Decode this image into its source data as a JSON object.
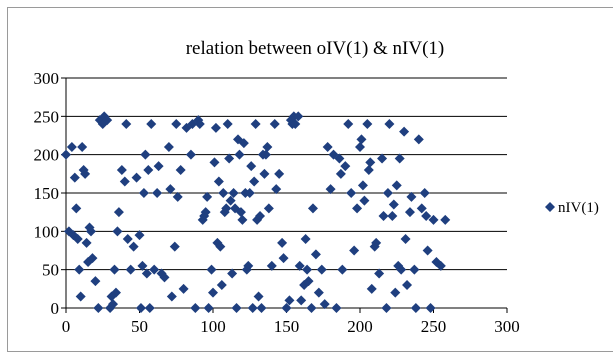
{
  "chart_data": {
    "type": "scatter",
    "title": "relation between oIV(1) & nIV(1)",
    "xlabel": "",
    "ylabel": "",
    "xlim": [
      0,
      300
    ],
    "ylim": [
      0,
      300
    ],
    "xticks": [
      "0",
      "50",
      "100",
      "150",
      "200",
      "250",
      "300"
    ],
    "yticks": [
      "0",
      "50",
      "100",
      "150",
      "200",
      "250",
      "300"
    ],
    "grid": "horizontal",
    "legend": "right",
    "marker": "diamond",
    "color": "#1f3f7f",
    "series": [
      {
        "name": "nIV(1)",
        "points": [
          [
            0,
            200
          ],
          [
            2,
            100
          ],
          [
            4,
            210
          ],
          [
            5,
            95
          ],
          [
            6,
            170
          ],
          [
            7,
            130
          ],
          [
            8,
            90
          ],
          [
            9,
            50
          ],
          [
            10,
            15
          ],
          [
            11,
            210
          ],
          [
            12,
            180
          ],
          [
            13,
            175
          ],
          [
            14,
            85
          ],
          [
            15,
            60
          ],
          [
            16,
            105
          ],
          [
            17,
            100
          ],
          [
            18,
            65
          ],
          [
            20,
            35
          ],
          [
            22,
            0
          ],
          [
            23,
            245
          ],
          [
            25,
            240
          ],
          [
            26,
            250
          ],
          [
            28,
            245
          ],
          [
            30,
            0
          ],
          [
            31,
            15
          ],
          [
            32,
            5
          ],
          [
            33,
            50
          ],
          [
            34,
            20
          ],
          [
            35,
            100
          ],
          [
            36,
            125
          ],
          [
            38,
            180
          ],
          [
            40,
            165
          ],
          [
            41,
            240
          ],
          [
            42,
            90
          ],
          [
            44,
            50
          ],
          [
            46,
            80
          ],
          [
            48,
            170
          ],
          [
            50,
            95
          ],
          [
            51,
            0
          ],
          [
            52,
            55
          ],
          [
            53,
            150
          ],
          [
            54,
            200
          ],
          [
            55,
            45
          ],
          [
            56,
            180
          ],
          [
            57,
            0
          ],
          [
            58,
            240
          ],
          [
            60,
            50
          ],
          [
            62,
            150
          ],
          [
            63,
            185
          ],
          [
            65,
            45
          ],
          [
            67,
            40
          ],
          [
            70,
            210
          ],
          [
            71,
            155
          ],
          [
            72,
            15
          ],
          [
            74,
            80
          ],
          [
            75,
            240
          ],
          [
            76,
            145
          ],
          [
            78,
            180
          ],
          [
            80,
            25
          ],
          [
            82,
            235
          ],
          [
            85,
            200
          ],
          [
            86,
            240
          ],
          [
            88,
            0
          ],
          [
            90,
            245
          ],
          [
            91,
            240
          ],
          [
            93,
            115
          ],
          [
            94,
            120
          ],
          [
            95,
            125
          ],
          [
            96,
            145
          ],
          [
            97,
            0
          ],
          [
            99,
            50
          ],
          [
            100,
            20
          ],
          [
            101,
            190
          ],
          [
            102,
            235
          ],
          [
            103,
            85
          ],
          [
            104,
            165
          ],
          [
            105,
            80
          ],
          [
            106,
            30
          ],
          [
            107,
            150
          ],
          [
            108,
            125
          ],
          [
            109,
            130
          ],
          [
            110,
            240
          ],
          [
            111,
            195
          ],
          [
            112,
            140
          ],
          [
            113,
            45
          ],
          [
            114,
            150
          ],
          [
            115,
            130
          ],
          [
            116,
            0
          ],
          [
            117,
            220
          ],
          [
            118,
            200
          ],
          [
            119,
            125
          ],
          [
            120,
            115
          ],
          [
            121,
            215
          ],
          [
            122,
            150
          ],
          [
            123,
            50
          ],
          [
            124,
            55
          ],
          [
            125,
            150
          ],
          [
            126,
            185
          ],
          [
            127,
            0
          ],
          [
            128,
            165
          ],
          [
            129,
            240
          ],
          [
            130,
            115
          ],
          [
            131,
            15
          ],
          [
            132,
            120
          ],
          [
            133,
            0
          ],
          [
            134,
            200
          ],
          [
            135,
            175
          ],
          [
            136,
            200
          ],
          [
            137,
            210
          ],
          [
            138,
            130
          ],
          [
            140,
            55
          ],
          [
            142,
            240
          ],
          [
            143,
            155
          ],
          [
            145,
            175
          ],
          [
            147,
            85
          ],
          [
            148,
            65
          ],
          [
            150,
            0
          ],
          [
            152,
            10
          ],
          [
            153,
            245
          ],
          [
            154,
            240
          ],
          [
            155,
            250
          ],
          [
            156,
            240
          ],
          [
            158,
            250
          ],
          [
            159,
            55
          ],
          [
            160,
            10
          ],
          [
            162,
            30
          ],
          [
            163,
            90
          ],
          [
            164,
            50
          ],
          [
            165,
            35
          ],
          [
            167,
            0
          ],
          [
            168,
            130
          ],
          [
            170,
            70
          ],
          [
            172,
            20
          ],
          [
            174,
            50
          ],
          [
            176,
            5
          ],
          [
            178,
            210
          ],
          [
            180,
            155
          ],
          [
            182,
            200
          ],
          [
            184,
            0
          ],
          [
            186,
            195
          ],
          [
            187,
            175
          ],
          [
            188,
            50
          ],
          [
            190,
            185
          ],
          [
            192,
            240
          ],
          [
            194,
            150
          ],
          [
            196,
            75
          ],
          [
            198,
            130
          ],
          [
            200,
            210
          ],
          [
            201,
            220
          ],
          [
            202,
            160
          ],
          [
            203,
            140
          ],
          [
            205,
            240
          ],
          [
            206,
            180
          ],
          [
            207,
            190
          ],
          [
            208,
            25
          ],
          [
            210,
            80
          ],
          [
            211,
            85
          ],
          [
            213,
            45
          ],
          [
            215,
            195
          ],
          [
            216,
            120
          ],
          [
            218,
            0
          ],
          [
            219,
            150
          ],
          [
            220,
            240
          ],
          [
            222,
            120
          ],
          [
            223,
            135
          ],
          [
            224,
            20
          ],
          [
            225,
            160
          ],
          [
            226,
            55
          ],
          [
            227,
            195
          ],
          [
            228,
            50
          ],
          [
            230,
            230
          ],
          [
            231,
            90
          ],
          [
            232,
            30
          ],
          [
            234,
            125
          ],
          [
            235,
            145
          ],
          [
            237,
            50
          ],
          [
            238,
            0
          ],
          [
            240,
            220
          ],
          [
            242,
            130
          ],
          [
            244,
            150
          ],
          [
            245,
            120
          ],
          [
            246,
            75
          ],
          [
            248,
            0
          ],
          [
            250,
            115
          ],
          [
            252,
            60
          ],
          [
            255,
            55
          ],
          [
            258,
            115
          ]
        ]
      }
    ]
  }
}
